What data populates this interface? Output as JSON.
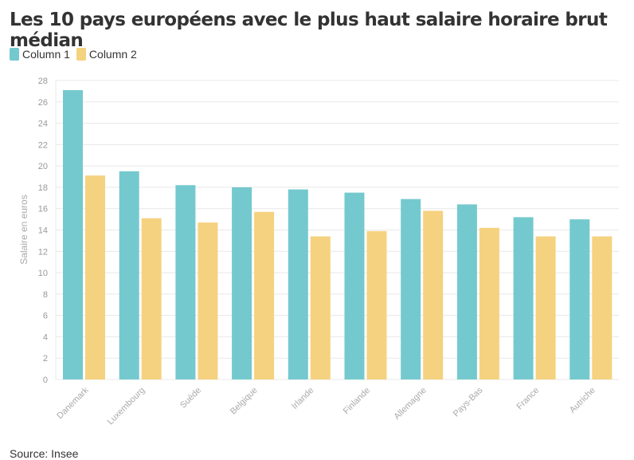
{
  "title": "Les 10 pays européens avec le plus haut salaire horaire brut médian",
  "source": "Source: Insee",
  "chart_data": {
    "type": "bar",
    "title": "Les 10 pays européens avec le plus haut salaire horaire brut médian",
    "xlabel": "",
    "ylabel": "Salaire en euros",
    "ylim": [
      0,
      28
    ],
    "yticks": [
      "0",
      "2",
      "4",
      "6",
      "8",
      "10",
      "12",
      "14",
      "16",
      "18",
      "20",
      "22",
      "24",
      "26",
      "28"
    ],
    "grid": true,
    "legend": "top-left",
    "categories": [
      "Danemark",
      "Luxembourg",
      "Suède",
      "Belgique",
      "Irlande",
      "Finlande",
      "Allemagne",
      "Pays-Bas",
      "France",
      "Autriche"
    ],
    "series": [
      {
        "name": "Column 1",
        "color": "#74c9ce",
        "values": [
          27.1,
          19.5,
          18.2,
          18.0,
          17.8,
          17.5,
          16.9,
          16.4,
          15.2,
          15.0
        ]
      },
      {
        "name": "Column 2",
        "color": "#f5d27f",
        "values": [
          19.1,
          15.1,
          14.7,
          15.7,
          13.4,
          13.9,
          15.8,
          14.2,
          13.4,
          13.4
        ]
      }
    ]
  }
}
